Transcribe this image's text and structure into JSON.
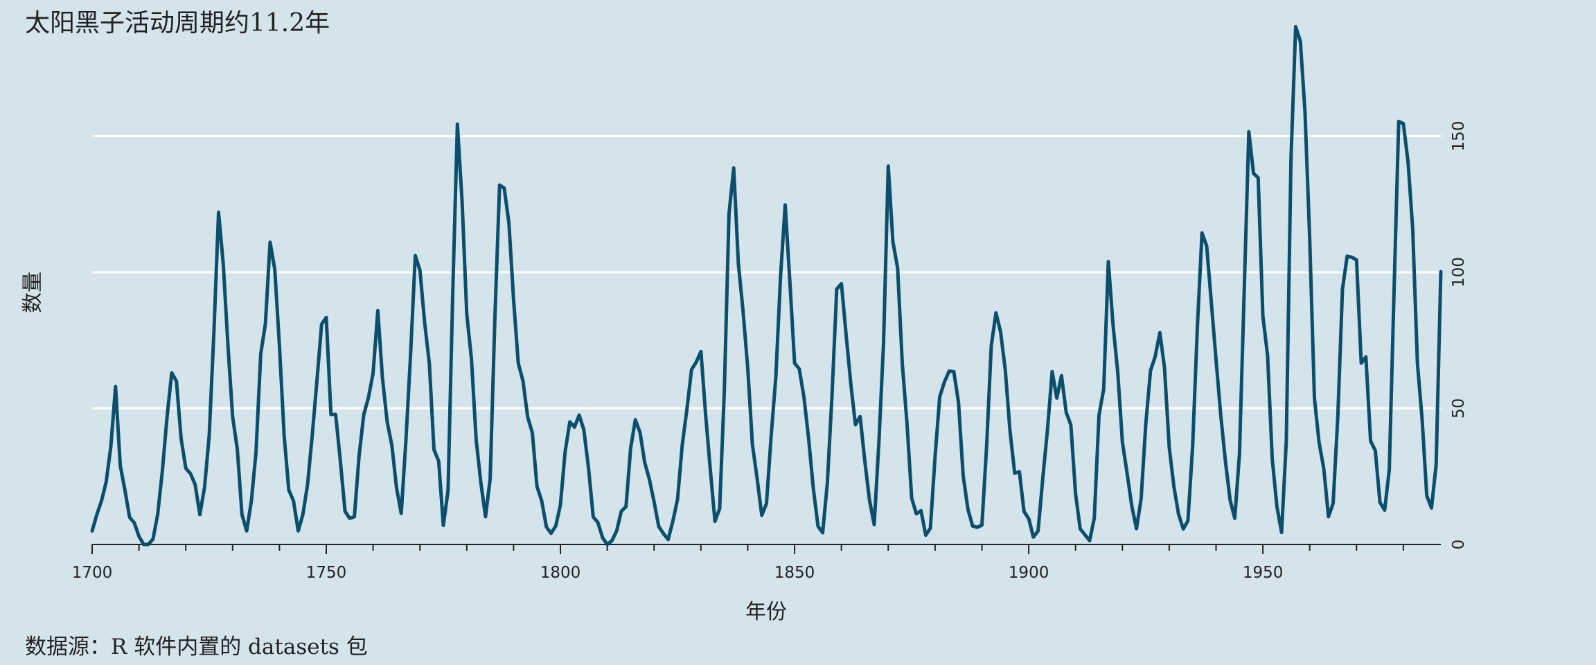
{
  "title": "太阳黑子活动周期约11.2年",
  "caption": "数据源：R 软件内置的 datasets 包",
  "colors": {
    "background": "#d5e4eb",
    "line": "#0b4f6c",
    "grid": "#ffffff",
    "axis": "#222222"
  },
  "chart_data": {
    "type": "line",
    "title": "太阳黑子活动周期约11.2年",
    "xlabel": "年份",
    "ylabel": "数量",
    "xlim": [
      1700,
      1988
    ],
    "ylim": [
      0,
      200
    ],
    "grid": true,
    "y_axis_side": "right",
    "x_ticks": [
      1700,
      1750,
      1800,
      1850,
      1900,
      1950
    ],
    "y_ticks": [
      0,
      50,
      100,
      150
    ],
    "x_start": 1700,
    "x_step": 1,
    "y": [
      5.0,
      11.0,
      16.0,
      23.0,
      36.0,
      58.0,
      29.0,
      20.0,
      10.0,
      8.0,
      3.0,
      0.0,
      0.0,
      2.0,
      11.0,
      27.0,
      47.0,
      63.0,
      60.0,
      39.0,
      28.0,
      26.0,
      22.0,
      11.0,
      21.0,
      40.0,
      78.0,
      122.0,
      103.0,
      73.0,
      47.0,
      35.0,
      11.0,
      5.0,
      16.0,
      34.0,
      70.0,
      81.0,
      111.0,
      101.0,
      73.0,
      40.0,
      20.0,
      16.0,
      5.0,
      11.0,
      22.0,
      40.0,
      60.0,
      80.9,
      83.4,
      47.7,
      47.8,
      30.7,
      12.2,
      9.6,
      10.2,
      32.4,
      47.6,
      54.0,
      62.9,
      85.9,
      61.2,
      45.1,
      36.4,
      20.9,
      11.4,
      37.8,
      69.8,
      106.1,
      100.8,
      81.6,
      66.5,
      34.8,
      30.6,
      7.0,
      19.8,
      92.5,
      154.4,
      125.9,
      84.8,
      68.1,
      38.5,
      22.8,
      10.2,
      24.1,
      82.9,
      132.0,
      130.9,
      118.1,
      89.9,
      66.6,
      60.0,
      46.9,
      41.0,
      21.3,
      16.0,
      6.4,
      4.1,
      6.8,
      14.5,
      34.0,
      45.0,
      43.1,
      47.5,
      42.2,
      28.1,
      10.1,
      8.1,
      2.5,
      0.0,
      1.4,
      5.0,
      12.2,
      13.9,
      35.4,
      45.8,
      41.1,
      30.1,
      23.9,
      15.6,
      6.6,
      4.0,
      1.8,
      8.5,
      16.6,
      36.3,
      49.6,
      64.2,
      67.0,
      70.9,
      47.8,
      27.5,
      8.5,
      13.2,
      56.9,
      121.5,
      138.3,
      103.2,
      85.7,
      64.6,
      36.7,
      24.2,
      10.7,
      15.0,
      40.1,
      61.5,
      98.5,
      124.7,
      96.3,
      66.6,
      64.5,
      54.1,
      39.0,
      20.6,
      6.7,
      4.3,
      22.7,
      54.8,
      93.8,
      95.8,
      77.2,
      59.1,
      44.0,
      47.0,
      30.5,
      16.3,
      7.3,
      37.6,
      74.0,
      139.0,
      111.2,
      101.6,
      66.2,
      44.7,
      17.0,
      11.3,
      12.4,
      3.4,
      6.0,
      32.3,
      54.3,
      59.7,
      63.7,
      63.5,
      52.2,
      25.4,
      13.1,
      6.8,
      6.3,
      7.1,
      35.6,
      73.0,
      85.1,
      78.0,
      64.0,
      41.8,
      26.2,
      26.7,
      12.1,
      9.5,
      2.7,
      5.0,
      24.4,
      42.0,
      63.5,
      53.8,
      62.0,
      48.5,
      43.9,
      18.6,
      5.7,
      3.6,
      1.4,
      9.6,
      47.4,
      57.1,
      103.9,
      80.6,
      63.6,
      37.6,
      26.1,
      14.2,
      5.8,
      16.7,
      44.3,
      63.9,
      69.0,
      77.8,
      64.9,
      35.7,
      21.2,
      11.1,
      5.7,
      8.7,
      36.1,
      79.7,
      114.4,
      109.6,
      88.8,
      67.8,
      47.5,
      30.6,
      16.3,
      9.6,
      33.2,
      92.6,
      151.6,
      136.3,
      134.7,
      83.9,
      69.4,
      31.5,
      13.9,
      4.4,
      38.0,
      141.7,
      190.2,
      184.8,
      159.0,
      112.3,
      53.9,
      37.5,
      27.9,
      10.2,
      15.1,
      47.0,
      93.8,
      105.9,
      105.5,
      104.5,
      66.6,
      68.9,
      38.0,
      34.5,
      15.5,
      12.6,
      27.5,
      92.5,
      155.4,
      154.6,
      140.5,
      115.9,
      66.6,
      45.9,
      17.9,
      13.4,
      29.2,
      100.2
    ]
  }
}
